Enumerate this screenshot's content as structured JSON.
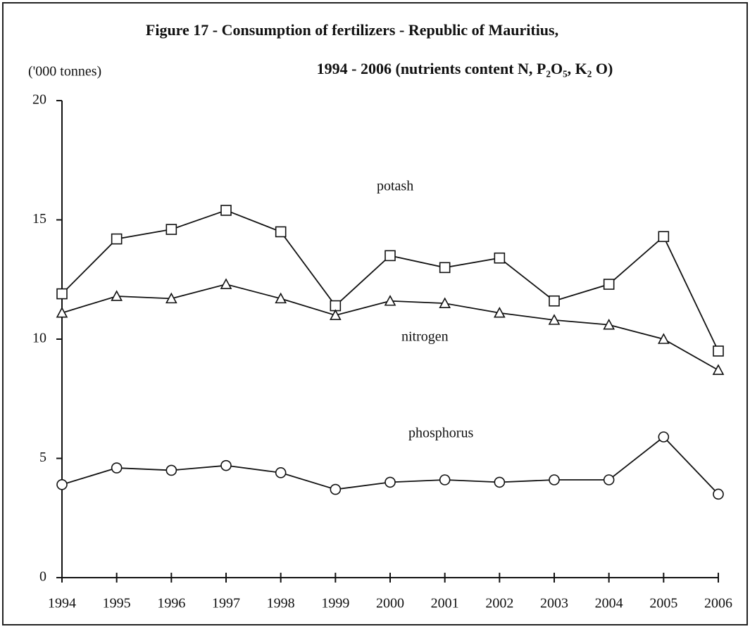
{
  "chart_data": {
    "type": "line",
    "title": "Figure 17 - Consumption of fertilizers - Republic of Mauritius,",
    "subtitle": "1994 - 2006   (nutrients content N, P₂O₅, K₂ O)",
    "y_label": "('000 tonnes)",
    "categories": [
      "1994",
      "1995",
      "1996",
      "1997",
      "1998",
      "1999",
      "2000",
      "2001",
      "2002",
      "2003",
      "2004",
      "2005",
      "2006"
    ],
    "series": [
      {
        "name": "potash",
        "color": "#111111",
        "marker": "square",
        "values": [
          11.9,
          14.2,
          14.6,
          15.4,
          14.5,
          11.4,
          13.5,
          13.0,
          13.4,
          11.6,
          12.3,
          14.3,
          9.5
        ]
      },
      {
        "name": "nitrogen",
        "color": "#111111",
        "marker": "triangle",
        "values": [
          11.1,
          11.8,
          11.7,
          12.3,
          11.7,
          11.0,
          11.6,
          11.5,
          11.1,
          10.8,
          10.6,
          10.0,
          8.7
        ]
      },
      {
        "name": "phosphorus",
        "color": "#111111",
        "marker": "circle",
        "values": [
          3.9,
          4.6,
          4.5,
          4.7,
          4.4,
          3.7,
          4.0,
          4.1,
          4.0,
          4.1,
          4.1,
          5.9,
          3.5
        ]
      }
    ],
    "ylim": [
      0,
      20
    ],
    "yticks": [
      0,
      5,
      10,
      15,
      20
    ],
    "grid": false
  }
}
